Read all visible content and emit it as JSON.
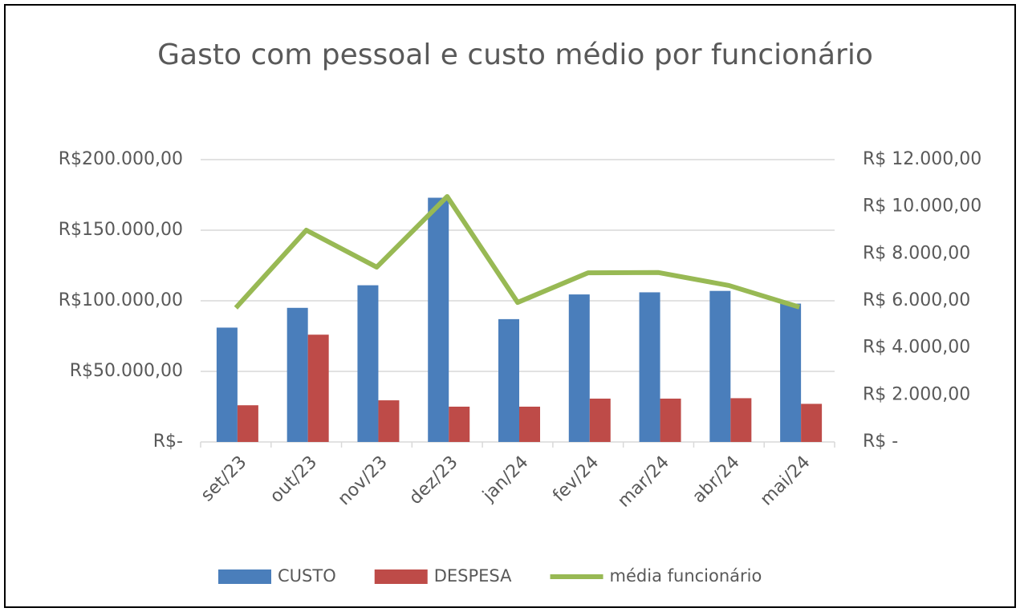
{
  "chart_data": {
    "type": "bar_line",
    "title": "Gasto com pessoal e custo médio por funcionário",
    "categories": [
      "set/23",
      "out/23",
      "nov/23",
      "dez/23",
      "jan/24",
      "fev/24",
      "mar/24",
      "abr/24",
      "mai/24"
    ],
    "series": [
      {
        "name": "CUSTO",
        "type": "bar",
        "color": "#4a7ebb",
        "values": [
          81000,
          95000,
          111000,
          173000,
          87000,
          104500,
          106000,
          107000,
          98000
        ]
      },
      {
        "name": "DESPESA",
        "type": "bar",
        "color": "#be4b48",
        "values": [
          26000,
          76000,
          29500,
          25000,
          25000,
          30700,
          30700,
          31000,
          27000
        ]
      },
      {
        "name": "média funcionário",
        "type": "line",
        "axis": "y2",
        "color": "#98b954",
        "values": [
          5700,
          9000,
          7430,
          10430,
          5930,
          7190,
          7200,
          6650,
          5730
        ]
      }
    ],
    "ylim": [
      0,
      200000
    ],
    "yticks": [
      {
        "value": 0,
        "label": "R$-"
      },
      {
        "value": 50000,
        "label": "R$50.000,00"
      },
      {
        "value": 100000,
        "label": "R$100.000,00"
      },
      {
        "value": 150000,
        "label": "R$150.000,00"
      },
      {
        "value": 200000,
        "label": "R$200.000,00"
      }
    ],
    "y2lim": [
      0,
      12000
    ],
    "y2ticks": [
      {
        "value": 0,
        "label": "R$ -"
      },
      {
        "value": 2000,
        "label": "R$ 2.000,00"
      },
      {
        "value": 4000,
        "label": "R$ 4.000,00"
      },
      {
        "value": 6000,
        "label": "R$ 6.000,00"
      },
      {
        "value": 8000,
        "label": "R$ 8.000,00"
      },
      {
        "value": 10000,
        "label": "R$ 10.000,00"
      },
      {
        "value": 12000,
        "label": "R$ 12.000,00"
      }
    ],
    "grid": true,
    "legend": "bottom"
  }
}
